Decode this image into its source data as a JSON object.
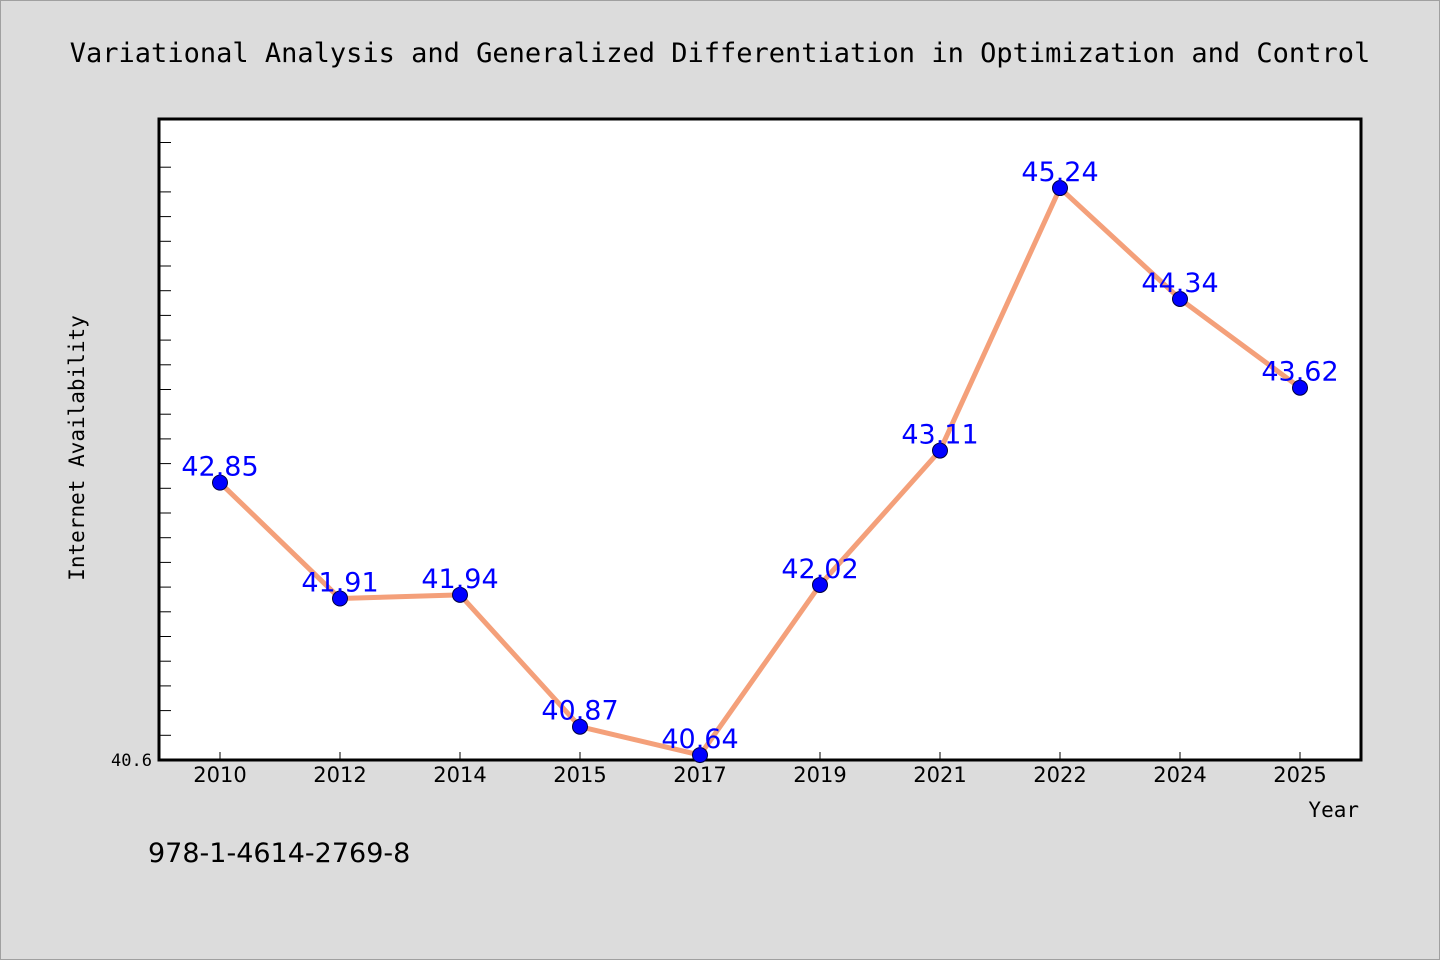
{
  "chart_data": {
    "type": "line",
    "title": "Variational Analysis and Generalized Differentiation in Optimization and Control",
    "xlabel": "Year",
    "ylabel": "Internet Availability",
    "categories": [
      "2010",
      "2012",
      "2014",
      "2015",
      "2017",
      "2019",
      "2021",
      "2022",
      "2024",
      "2025"
    ],
    "series": [
      {
        "values": [
          42.85,
          41.91,
          41.94,
          40.87,
          40.64,
          42.02,
          43.11,
          45.24,
          44.34,
          43.62
        ],
        "labels": [
          "42.85",
          "41.91",
          "41.94",
          "40.87",
          "40.64",
          "42.02",
          "43.11",
          "45.24",
          "44.34",
          "43.62"
        ]
      }
    ],
    "y_tick_label": "40.6",
    "ylim": [
      40.6,
      45.8
    ],
    "grid": false,
    "line_color": "#f4a07a",
    "marker_color": "#0000ff",
    "label_color": "#0000ff"
  },
  "footer": {
    "isbn": "978-1-4614-2769-8"
  }
}
